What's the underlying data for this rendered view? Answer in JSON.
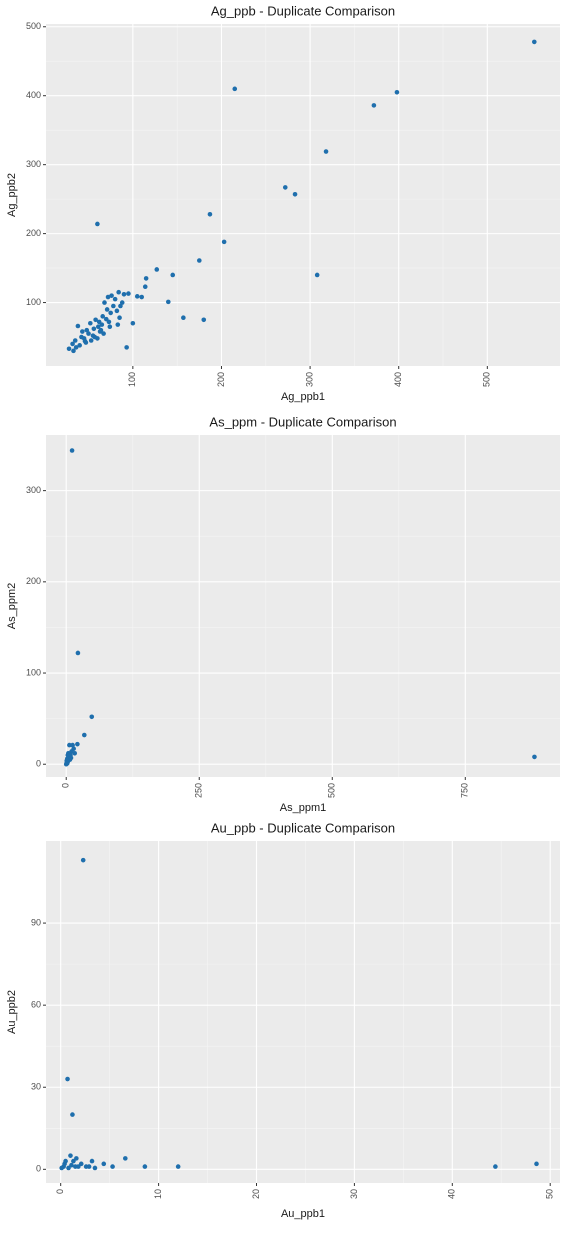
{
  "chart_data": [
    {
      "type": "scatter",
      "title": "Ag_ppb - Duplicate Comparison",
      "x_label": "Ag_ppb1",
      "y_label": "Ag_ppb2",
      "color": "#1f6fad",
      "x": [
        28,
        32,
        35,
        36,
        38,
        40,
        42,
        43,
        45,
        46,
        48,
        50,
        52,
        53,
        55,
        56,
        58,
        60,
        61,
        62,
        63,
        65,
        66,
        67,
        68,
        70,
        71,
        72,
        74,
        75,
        76,
        78,
        80,
        82,
        84,
        85,
        86,
        88,
        90,
        33,
        47,
        57,
        64,
        73,
        83,
        553,
        398,
        372,
        318,
        215,
        272,
        283,
        308,
        187,
        203,
        175,
        180,
        157,
        145,
        140,
        127,
        115,
        114,
        110,
        105,
        100,
        95,
        93,
        60
      ],
      "values": [
        33,
        40,
        45,
        35,
        66,
        38,
        50,
        58,
        48,
        44,
        60,
        55,
        70,
        45,
        52,
        62,
        75,
        48,
        65,
        72,
        58,
        68,
        80,
        55,
        100,
        76,
        90,
        108,
        65,
        85,
        110,
        95,
        105,
        88,
        115,
        78,
        95,
        100,
        112,
        30,
        42,
        50,
        60,
        72,
        68,
        478,
        405,
        386,
        319,
        410,
        267,
        257,
        140,
        228,
        188,
        161,
        75,
        78,
        140,
        101,
        148,
        135,
        123,
        108,
        109,
        70,
        113,
        35,
        214
      ],
      "xlim": [
        2,
        582
      ],
      "ylim": [
        8,
        504
      ],
      "xticks": [
        100,
        200,
        300,
        400,
        500
      ],
      "yticks": [
        100,
        200,
        300,
        400,
        500
      ],
      "grid": true,
      "minor_grid": true
    },
    {
      "type": "scatter",
      "title": "As_ppm - Duplicate Comparison",
      "x_label": "As_ppm1",
      "y_label": "As_ppm2",
      "color": "#1f6fad",
      "x": [
        11,
        22,
        48,
        880,
        34,
        21,
        14,
        10,
        6,
        12,
        4,
        2,
        3,
        1,
        5,
        8,
        16,
        0,
        7,
        2,
        1,
        9,
        3
      ],
      "values": [
        344,
        122,
        52,
        8,
        32,
        22,
        17,
        14,
        21,
        21,
        12,
        6,
        3,
        2,
        8,
        10,
        12,
        0,
        5,
        1,
        4,
        7,
        10
      ],
      "xlim": [
        -38,
        928
      ],
      "ylim": [
        -14,
        361
      ],
      "xticks": [
        0,
        250,
        500,
        750
      ],
      "yticks": [
        0,
        100,
        200,
        300
      ],
      "grid": true,
      "minor_grid": true
    },
    {
      "type": "scatter",
      "title": "Au_ppb - Duplicate Comparison",
      "x_label": "Au_ppb1",
      "y_label": "Au_ppb2",
      "color": "#1f6fad",
      "x": [
        2.3,
        0.7,
        1.2,
        44.4,
        48.6,
        12,
        8.6,
        6.6,
        5.3,
        4.4,
        3.2,
        2.9,
        2.1,
        1.5,
        1,
        0.5,
        0.3,
        0.1,
        0.8,
        1.3,
        1.8,
        2.6,
        0.4,
        1.1,
        3.5,
        1.6
      ],
      "values": [
        113,
        33,
        20,
        1,
        2,
        1,
        1,
        4,
        1,
        2,
        3,
        1,
        2,
        1,
        5,
        3,
        1,
        0.5,
        0.5,
        3,
        1,
        1,
        2,
        1.5,
        0.5,
        4
      ],
      "xlim": [
        -1.5,
        51
      ],
      "ylim": [
        -5,
        120
      ],
      "xticks": [
        0,
        10,
        20,
        30,
        40,
        50
      ],
      "yticks": [
        0,
        30,
        60,
        90
      ],
      "grid": true,
      "minor_grid": true
    }
  ]
}
